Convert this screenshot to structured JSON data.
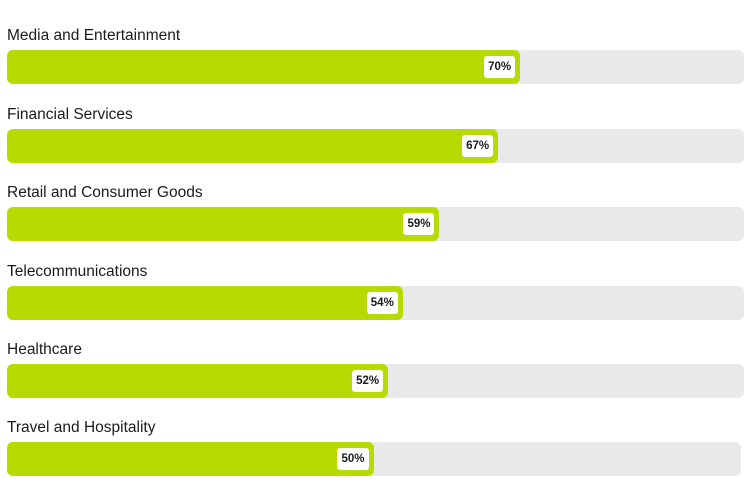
{
  "chart_data": {
    "type": "bar",
    "orientation": "horizontal",
    "title": "",
    "xlabel": "",
    "ylabel": "",
    "xlim": [
      0,
      100
    ],
    "grid": false,
    "legend": null,
    "categories": [
      "Media and Entertainment",
      "Financial Services",
      "Retail and Consumer Goods",
      "Telecommunications",
      "Healthcare",
      "Travel and Hospitality"
    ],
    "values": [
      70,
      67,
      59,
      54,
      52,
      50
    ],
    "value_labels": [
      "70%",
      "67%",
      "59%",
      "54%",
      "52%",
      "50%"
    ],
    "colors": {
      "fill": "#b7db00",
      "track": "#e9e9e9",
      "label_bg": "#ffffff",
      "text": "#1b1b1b"
    }
  },
  "rows": [
    {
      "label": "Media and Entertainment",
      "value": 70,
      "display": "70%"
    },
    {
      "label": "Financial Services",
      "value": 67,
      "display": "67%"
    },
    {
      "label": "Retail and Consumer Goods",
      "value": 59,
      "display": "59%"
    },
    {
      "label": "Telecommunications",
      "value": 54,
      "display": "54%"
    },
    {
      "label": "Healthcare",
      "value": 52,
      "display": "52%"
    },
    {
      "label": "Travel and Hospitality",
      "value": 50,
      "display": "50%"
    }
  ]
}
